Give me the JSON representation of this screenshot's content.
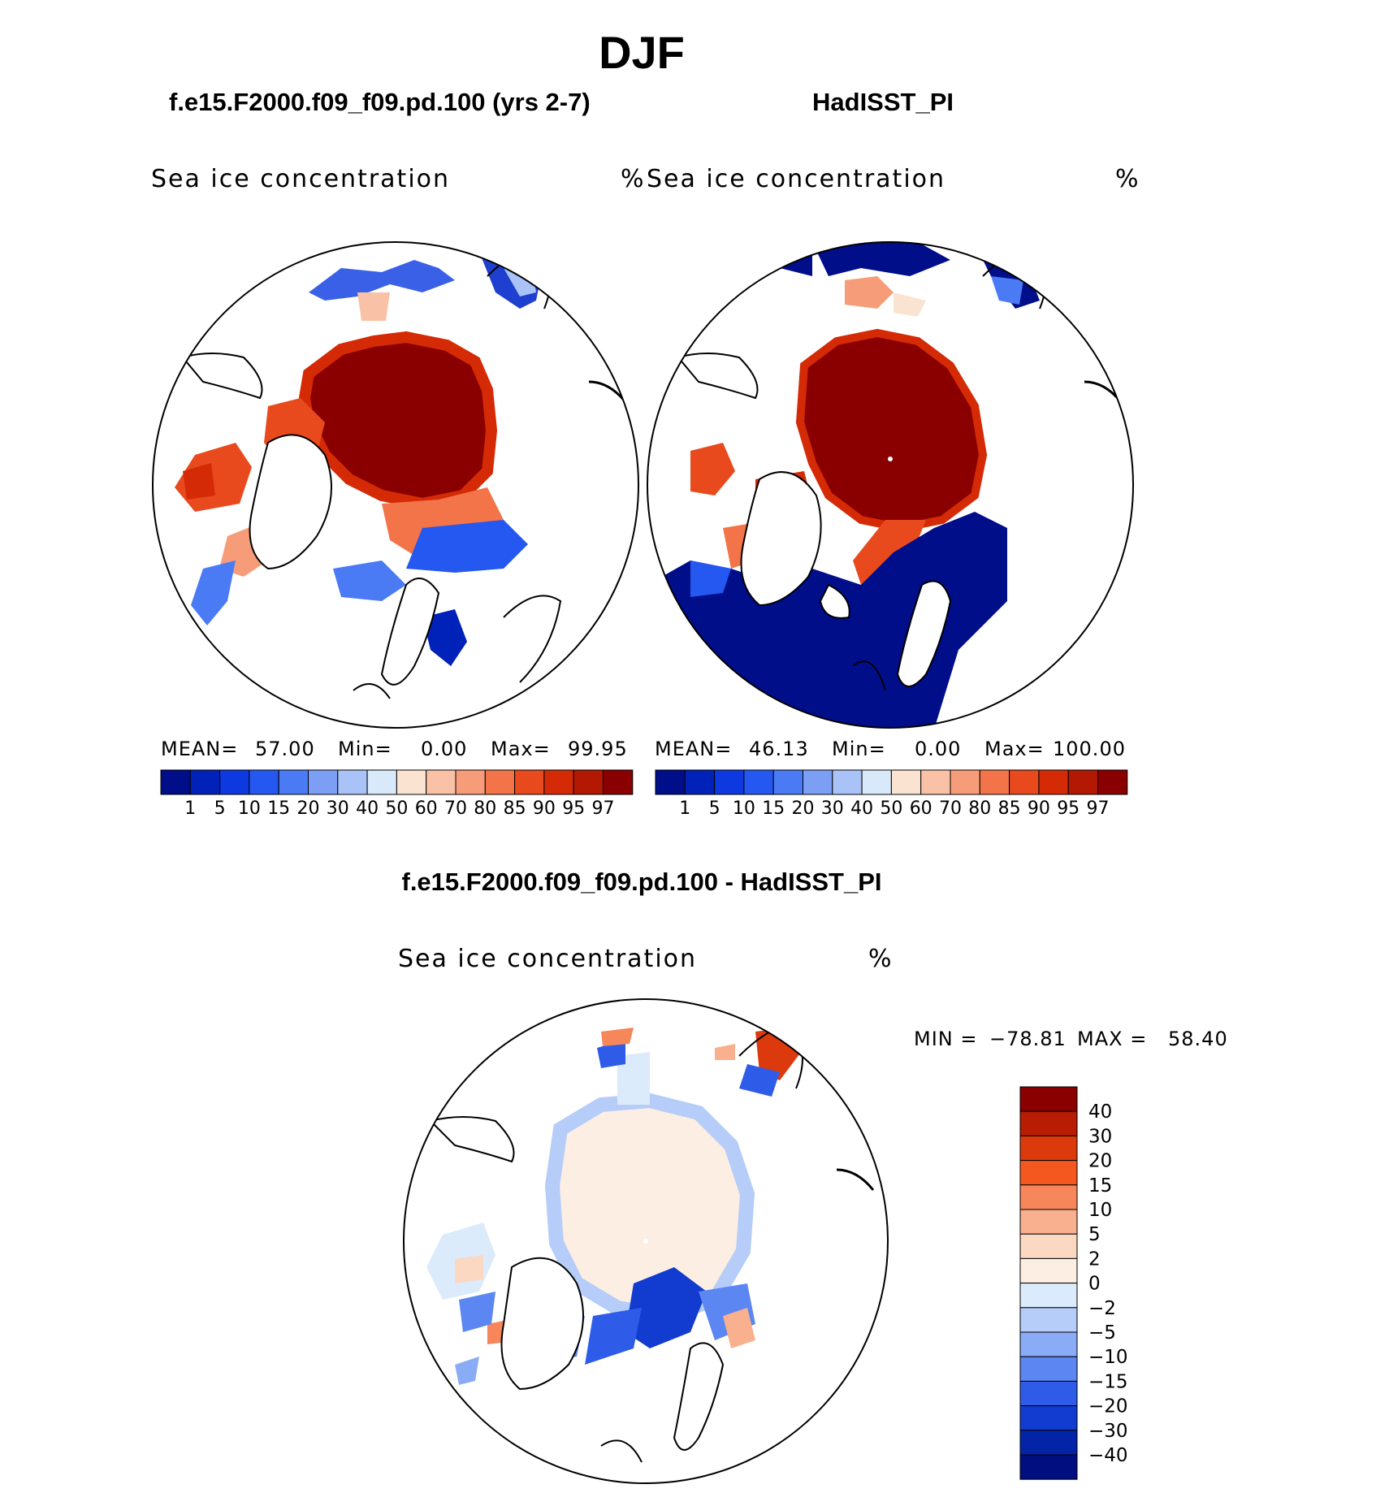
{
  "title": "DJF",
  "panels": [
    {
      "case_name": "f.e15.F2000.f09_f09.pd.100 (yrs 2-7)",
      "variable": "Sea ice concentration",
      "units": "%",
      "mean_label": "MEAN=",
      "mean": "57.00",
      "min_label": "Min=",
      "min": "0.00",
      "max_label": "Max=",
      "max": "99.95"
    },
    {
      "case_name": "HadISST_PI",
      "variable": "Sea ice concentration",
      "units": "%",
      "mean_label": "MEAN=",
      "mean": "46.13",
      "min_label": "Min=",
      "min": "0.00",
      "max_label": "Max=",
      "max": "100.00"
    }
  ],
  "colorbar": {
    "levels": [
      "1",
      "5",
      "10",
      "15",
      "20",
      "30",
      "40",
      "50",
      "60",
      "70",
      "80",
      "85",
      "90",
      "95",
      "97"
    ],
    "colors": [
      "#000e8a",
      "#0022b8",
      "#0d3ae0",
      "#2458f0",
      "#4a7af4",
      "#7c9ef5",
      "#a9c2f7",
      "#d8e9fa",
      "#fbe3d2",
      "#f9c2a6",
      "#f79c78",
      "#f27448",
      "#e84a1e",
      "#d42a06",
      "#b31802",
      "#8a0000"
    ]
  },
  "difference": {
    "title": "f.e15.F2000.f09_f09.pd.100 - HadISST_PI",
    "variable": "Sea ice concentration",
    "units": "%",
    "min_label": "MIN =",
    "min": "−78.81",
    "max_label": "MAX =",
    "max": "58.40",
    "colorbar_labels": [
      "40",
      "30",
      "20",
      "15",
      "10",
      "5",
      "2",
      "0",
      "−2",
      "−5",
      "−10",
      "−15",
      "−20",
      "−30",
      "−40"
    ],
    "colorbar_colors": [
      "#8a0000",
      "#b81c02",
      "#dc3a0c",
      "#f5581e",
      "#f7865a",
      "#f9b08e",
      "#fbd8c2",
      "#fdeee4",
      "#dcebfb",
      "#b5cdf8",
      "#8aacf6",
      "#5c86f2",
      "#2e5ce8",
      "#123cd0",
      "#0424a8",
      "#000e80"
    ]
  }
}
